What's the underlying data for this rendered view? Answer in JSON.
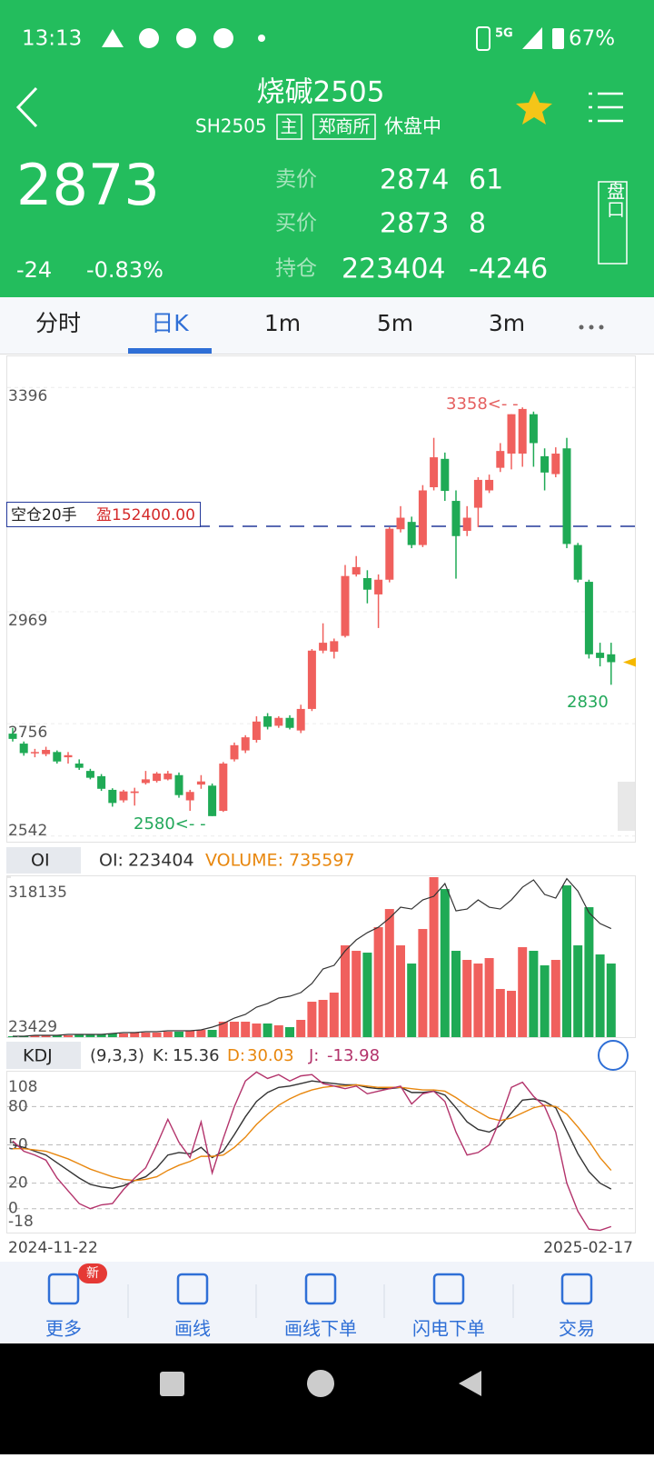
{
  "status_bar": {
    "time": "13:13",
    "network": "5G",
    "battery": "67%"
  },
  "header": {
    "title": "烧碱2505",
    "code": "SH2505",
    "badge_main": "主",
    "exchange": "郑商所",
    "status": "休盘中"
  },
  "quote": {
    "last": 2873,
    "change": -24,
    "change_pct": "-0.83%",
    "ask_label": "卖价",
    "ask": 2874,
    "ask_volume": 61,
    "bid_label": "买价",
    "bid": 2873,
    "bid_volume": 8,
    "oi_label": "持仓",
    "oi": 223404,
    "oi_change": -4246,
    "side_button": "盘口"
  },
  "tabs": [
    "分时",
    "日K",
    "1m",
    "5m",
    "3m"
  ],
  "kline": {
    "type": "candlestick",
    "ylim": [
      2533,
      3450
    ],
    "yticks": [
      3396,
      2969,
      2756,
      2542
    ],
    "position_label": "空仓20手",
    "position_profit": "盈152400.00",
    "high_label": "3358<- -",
    "low_label": "2580<- -",
    "last_low_label": "2830",
    "open": [
      2737,
      2718,
      2700,
      2698,
      2702,
      2692,
      2680,
      2666,
      2656,
      2630,
      2610,
      2624,
      2643,
      2647,
      2650,
      2658,
      2610,
      2640,
      2638,
      2590,
      2688,
      2705,
      2725,
      2770,
      2752,
      2767,
      2743,
      2784,
      2895,
      2893,
      2923,
      3040,
      3033,
      3002,
      3030,
      3126,
      3140,
      3096,
      3206,
      3260,
      3180,
      3123,
      3167,
      3200,
      3243,
      3270,
      3270,
      3345,
      3265,
      3231,
      3280,
      3096,
      3026,
      2891,
      2888
    ],
    "high": [
      2748,
      2722,
      2708,
      2712,
      2705,
      2702,
      2688,
      2670,
      2660,
      2633,
      2630,
      2634,
      2666,
      2664,
      2666,
      2663,
      2630,
      2658,
      2642,
      2683,
      2720,
      2734,
      2770,
      2776,
      2770,
      2772,
      2792,
      2898,
      2947,
      2918,
      3058,
      3075,
      3048,
      3040,
      3130,
      3170,
      3150,
      3210,
      3300,
      3272,
      3200,
      3170,
      3225,
      3230,
      3290,
      3345,
      3358,
      3350,
      3280,
      3282,
      3300,
      3100,
      3030,
      2910,
      2910
    ],
    "low": [
      2722,
      2695,
      2692,
      2694,
      2680,
      2680,
      2668,
      2650,
      2628,
      2598,
      2606,
      2600,
      2640,
      2644,
      2648,
      2615,
      2590,
      2632,
      2580,
      2588,
      2684,
      2700,
      2720,
      2745,
      2748,
      2745,
      2738,
      2780,
      2890,
      2880,
      2920,
      3036,
      2985,
      2938,
      3025,
      3120,
      3090,
      3092,
      3200,
      3180,
      3032,
      3113,
      3130,
      3195,
      3235,
      3240,
      3245,
      3245,
      3200,
      3225,
      3090,
      3025,
      2880,
      2865,
      2830
    ],
    "close": [
      2727,
      2700,
      2702,
      2706,
      2684,
      2696,
      2672,
      2653,
      2632,
      2605,
      2627,
      2627,
      2650,
      2661,
      2661,
      2620,
      2626,
      2646,
      2580,
      2680,
      2715,
      2730,
      2760,
      2750,
      2767,
      2748,
      2784,
      2895,
      2910,
      2913,
      3037,
      3054,
      3011,
      3030,
      3127,
      3148,
      3096,
      3200,
      3263,
      3199,
      3113,
      3148,
      3220,
      3220,
      3275,
      3345,
      3355,
      3290,
      3234,
      3270,
      3098,
      3030,
      2888,
      2881,
      2873
    ]
  },
  "volume_panel": {
    "indicator": "OI",
    "oi_label": "OI:",
    "oi": 223404,
    "volume_label": "VOLUME:",
    "volume": 735597,
    "ylim": [
      23429,
      318135
    ],
    "yticks": [
      318135,
      23429
    ],
    "volumes": [
      25103,
      25103,
      26777,
      26777,
      26777,
      26777,
      28451,
      28451,
      28451,
      30125,
      30125,
      31799,
      31799,
      31799,
      33473,
      33473,
      35147,
      36821,
      36821,
      51887,
      51887,
      51887,
      48539,
      48539,
      45191,
      41843,
      55235,
      88715,
      92063,
      105455,
      192503,
      182459,
      179111,
      225983,
      259463,
      192503,
      159023,
      222635,
      318135,
      296291,
      182459,
      165719,
      159023,
      169067,
      112151,
      108803,
      189155,
      182459,
      155675,
      165719,
      302987,
      192503,
      262811,
      175763,
      159023
    ],
    "oi_series": [
      25103,
      25103,
      26777,
      26777,
      26777,
      28451,
      28451,
      28451,
      28451,
      30125,
      31799,
      31799,
      33473,
      33473,
      35147,
      35147,
      35147,
      36821,
      41843,
      48539,
      58583,
      65279,
      78671,
      85367,
      95411,
      98759,
      105455,
      122195,
      148979,
      155675,
      182459,
      202547,
      215939,
      225983,
      242723,
      262811,
      259463,
      276203,
      282899,
      306335,
      256115,
      259463,
      276203,
      262811,
      259463,
      276203,
      299639,
      313031,
      286247,
      279551,
      315383,
      292403,
      252767,
      232679,
      223404
    ]
  },
  "kdj_panel": {
    "indicator": "KDJ",
    "params": "(9,3,3)",
    "k_label": "K:",
    "k": 15.36,
    "d_label": "D:",
    "d": 30.03,
    "j_label": "J:",
    "j": -13.98,
    "ylim": [
      -18,
      108
    ],
    "yticks": [
      108,
      80,
      50,
      20,
      0,
      -18
    ],
    "series": [
      {
        "name": "K",
        "color": "#333333",
        "values": [
          50,
          48,
          45,
          42,
          36,
          30,
          24,
          19,
          17,
          16,
          18,
          22,
          25,
          32,
          42,
          44,
          43,
          48,
          40,
          45,
          58,
          72,
          84,
          91,
          95,
          96,
          98,
          100,
          99,
          98,
          97,
          97,
          95,
          94,
          94,
          95,
          91,
          91,
          92,
          89,
          79,
          68,
          62,
          60,
          65,
          75,
          85,
          86,
          84,
          79,
          61,
          43,
          29,
          20,
          15.36
        ]
      },
      {
        "name": "D",
        "color": "#e8870e",
        "values": [
          47,
          47,
          46,
          45,
          42,
          39,
          35,
          31,
          28,
          25,
          23,
          22,
          23,
          25,
          30,
          34,
          37,
          41,
          41,
          42,
          48,
          56,
          66,
          74,
          81,
          86,
          90,
          93,
          95,
          96,
          96,
          97,
          96,
          95,
          95,
          95,
          94,
          93,
          93,
          92,
          87,
          81,
          76,
          71,
          69,
          71,
          75,
          79,
          81,
          80,
          74,
          64,
          53,
          40,
          30.03
        ]
      },
      {
        "name": "J",
        "color": "#b3336b",
        "values": [
          53,
          45,
          42,
          38,
          24,
          14,
          4,
          0,
          3,
          4,
          15,
          24,
          32,
          50,
          70,
          52,
          40,
          68,
          28,
          55,
          80,
          100,
          107,
          102,
          105,
          100,
          104,
          105,
          98,
          96,
          94,
          96,
          90,
          92,
          94,
          96,
          82,
          90,
          92,
          84,
          60,
          42,
          44,
          50,
          70,
          95,
          99,
          88,
          80,
          60,
          20,
          -2,
          -16,
          -17,
          -13.98
        ]
      }
    ]
  },
  "x_axis": {
    "start": "2024-11-22",
    "end": "2025-02-17"
  },
  "toolbar": {
    "items": [
      "更多",
      "画线",
      "画线下单",
      "闪电下单",
      "交易"
    ],
    "badge": "新"
  }
}
